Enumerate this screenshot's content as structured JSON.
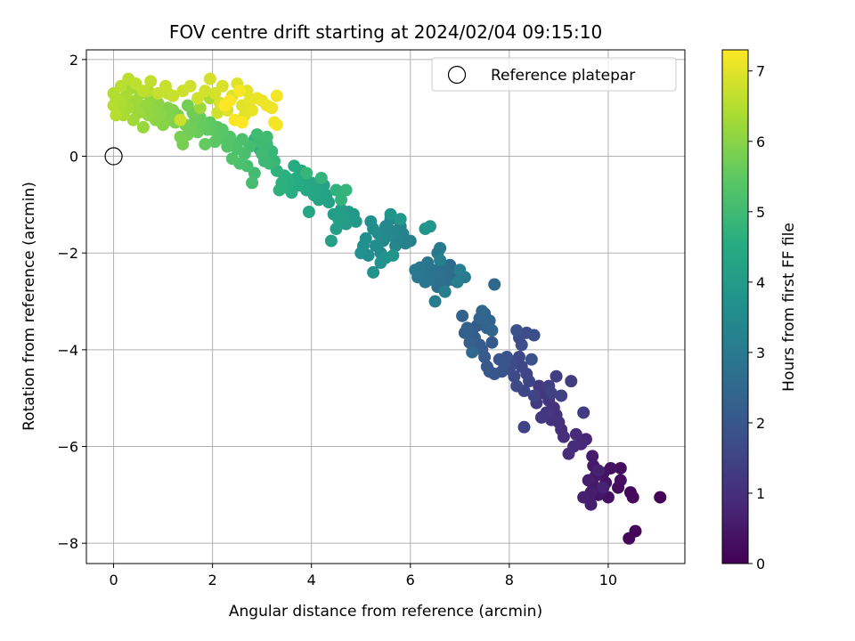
{
  "chart_data": {
    "type": "scatter",
    "title": "FOV centre drift starting at 2024/02/04 09:15:10",
    "xlabel": "Angular distance from reference (arcmin)",
    "ylabel": "Rotation from reference (arcmin)",
    "xlim": [
      -0.55,
      11.55
    ],
    "ylim": [
      -8.42,
      2.2
    ],
    "xticks": [
      0,
      2,
      4,
      6,
      8,
      10
    ],
    "yticks": [
      2,
      0,
      -2,
      -4,
      -6,
      -8
    ],
    "xtick_labels": [
      "0",
      "2",
      "4",
      "6",
      "8",
      "10"
    ],
    "ytick_labels": [
      "2",
      "0",
      "−2",
      "−4",
      "−6",
      "−8"
    ],
    "grid": true,
    "colormap": "viridis",
    "colorbar": {
      "label": "Hours from first FF file",
      "range": [
        0,
        7.3
      ],
      "ticks": [
        0,
        1,
        2,
        3,
        4,
        5,
        6,
        7
      ],
      "tick_labels": [
        "0",
        "1",
        "2",
        "3",
        "4",
        "5",
        "6",
        "7"
      ]
    },
    "reference": {
      "name": "Reference platepar",
      "x": 0,
      "y": 0
    },
    "legend_location": "top-right",
    "points": [
      [
        11.05,
        -7.05,
        0.05
      ],
      [
        10.55,
        -7.75,
        0.1
      ],
      [
        10.42,
        -7.9,
        0.12
      ],
      [
        10.45,
        -6.95,
        0.18
      ],
      [
        10.5,
        -7.05,
        0.2
      ],
      [
        10.2,
        -6.85,
        0.25
      ],
      [
        10.25,
        -6.7,
        0.28
      ],
      [
        10.25,
        -6.45,
        0.3
      ],
      [
        10.05,
        -6.45,
        0.32
      ],
      [
        10.0,
        -7.05,
        0.35
      ],
      [
        9.95,
        -6.75,
        0.38
      ],
      [
        9.9,
        -6.55,
        0.4
      ],
      [
        9.85,
        -6.9,
        0.42
      ],
      [
        9.8,
        -7.0,
        0.45
      ],
      [
        9.75,
        -6.6,
        0.48
      ],
      [
        9.7,
        -6.8,
        0.5
      ],
      [
        9.7,
        -6.4,
        0.52
      ],
      [
        9.68,
        -6.2,
        0.55
      ],
      [
        9.65,
        -6.95,
        0.58
      ],
      [
        9.6,
        -7.05,
        0.6
      ],
      [
        9.6,
        -6.7,
        0.62
      ],
      [
        9.65,
        -7.2,
        0.65
      ],
      [
        9.5,
        -7.05,
        0.68
      ],
      [
        9.8,
        -6.5,
        0.7
      ],
      [
        9.9,
        -6.85,
        0.72
      ],
      [
        9.55,
        -5.85,
        0.8
      ],
      [
        9.45,
        -5.95,
        0.85
      ],
      [
        9.35,
        -5.75,
        0.9
      ],
      [
        9.3,
        -6.0,
        0.92
      ],
      [
        9.2,
        -6.15,
        0.95
      ],
      [
        9.1,
        -5.8,
        1.0
      ],
      [
        9.05,
        -5.65,
        1.02
      ],
      [
        9.0,
        -5.5,
        1.05
      ],
      [
        8.95,
        -5.35,
        1.08
      ],
      [
        8.9,
        -5.2,
        1.1
      ],
      [
        8.85,
        -5.45,
        1.12
      ],
      [
        8.8,
        -5.05,
        1.15
      ],
      [
        8.75,
        -5.3,
        1.18
      ],
      [
        8.7,
        -4.9,
        1.2
      ],
      [
        8.65,
        -5.4,
        1.22
      ],
      [
        8.6,
        -4.75,
        1.25
      ],
      [
        8.55,
        -5.1,
        1.28
      ],
      [
        9.25,
        -4.65,
        1.3
      ],
      [
        9.5,
        -5.3,
        1.32
      ],
      [
        8.95,
        -4.55,
        1.35
      ],
      [
        8.8,
        -4.75,
        1.38
      ],
      [
        9.05,
        -4.95,
        1.4
      ],
      [
        8.85,
        -4.9,
        1.42
      ],
      [
        8.3,
        -5.6,
        1.45
      ],
      [
        8.5,
        -4.95,
        1.48
      ],
      [
        8.4,
        -4.65,
        1.5
      ],
      [
        8.35,
        -4.5,
        1.52
      ],
      [
        8.3,
        -4.85,
        1.55
      ],
      [
        8.25,
        -4.35,
        1.58
      ],
      [
        8.2,
        -4.15,
        1.6
      ],
      [
        8.15,
        -4.75,
        1.62
      ],
      [
        8.1,
        -4.55,
        1.65
      ],
      [
        8.05,
        -4.3,
        1.68
      ],
      [
        8.0,
        -4.4,
        1.7
      ],
      [
        8.35,
        -3.65,
        1.72
      ],
      [
        8.2,
        -3.75,
        1.75
      ],
      [
        8.25,
        -3.9,
        1.78
      ],
      [
        8.5,
        -3.7,
        1.8
      ],
      [
        8.45,
        -4.2,
        1.82
      ],
      [
        8.15,
        -3.6,
        1.85
      ],
      [
        7.95,
        -4.15,
        1.88
      ],
      [
        7.9,
        -4.3,
        1.9
      ],
      [
        7.85,
        -4.45,
        1.92
      ],
      [
        7.8,
        -4.2,
        1.95
      ],
      [
        7.7,
        -4.5,
        1.98
      ],
      [
        7.6,
        -4.45,
        2.0
      ],
      [
        7.55,
        -4.35,
        2.02
      ],
      [
        7.5,
        -4.15,
        2.05
      ],
      [
        7.65,
        -3.85,
        2.08
      ],
      [
        7.45,
        -4.0,
        2.1
      ],
      [
        7.4,
        -3.9,
        2.12
      ],
      [
        7.35,
        -3.5,
        2.15
      ],
      [
        7.3,
        -3.75,
        2.18
      ],
      [
        7.25,
        -3.6,
        2.2
      ],
      [
        7.2,
        -3.85,
        2.22
      ],
      [
        7.15,
        -3.55,
        2.25
      ],
      [
        7.1,
        -3.65,
        2.28
      ],
      [
        7.05,
        -3.3,
        2.3
      ],
      [
        7.5,
        -3.25,
        2.32
      ],
      [
        7.55,
        -3.55,
        2.35
      ],
      [
        7.4,
        -3.35,
        2.38
      ],
      [
        7.6,
        -3.4,
        2.4
      ],
      [
        7.65,
        -3.6,
        2.42
      ],
      [
        7.45,
        -3.2,
        2.45
      ],
      [
        7.7,
        -2.65,
        2.48
      ],
      [
        7.25,
        -4.05,
        2.5
      ],
      [
        6.9,
        -2.45,
        2.55
      ],
      [
        6.85,
        -2.55,
        2.58
      ],
      [
        6.8,
        -2.25,
        2.6
      ],
      [
        6.75,
        -2.4,
        2.62
      ],
      [
        6.7,
        -2.6,
        2.65
      ],
      [
        6.65,
        -2.3,
        2.68
      ],
      [
        6.6,
        -2.5,
        2.7
      ],
      [
        6.55,
        -2.7,
        2.72
      ],
      [
        6.5,
        -2.45,
        2.75
      ],
      [
        6.45,
        -2.35,
        2.78
      ],
      [
        6.4,
        -2.55,
        2.8
      ],
      [
        6.35,
        -2.2,
        2.82
      ],
      [
        6.3,
        -2.6,
        2.85
      ],
      [
        6.25,
        -2.4,
        2.88
      ],
      [
        6.2,
        -2.3,
        2.9
      ],
      [
        6.15,
        -2.5,
        2.92
      ],
      [
        6.1,
        -2.35,
        2.95
      ],
      [
        6.55,
        -2.0,
        2.98
      ],
      [
        6.6,
        -1.9,
        3.0
      ],
      [
        6.5,
        -3.0,
        3.02
      ],
      [
        7.1,
        -2.5,
        3.05
      ],
      [
        7.0,
        -2.35,
        3.08
      ],
      [
        6.95,
        -2.6,
        3.1
      ],
      [
        6.6,
        -2.15,
        3.12
      ],
      [
        6.7,
        -2.8,
        3.15
      ],
      [
        6.0,
        -1.75,
        3.2
      ],
      [
        5.9,
        -1.8,
        3.22
      ],
      [
        5.85,
        -1.6,
        3.25
      ],
      [
        5.8,
        -1.45,
        3.28
      ],
      [
        5.75,
        -1.7,
        3.3
      ],
      [
        5.7,
        -1.85,
        3.32
      ],
      [
        5.65,
        -1.55,
        3.35
      ],
      [
        5.6,
        -1.3,
        3.38
      ],
      [
        5.55,
        -1.65,
        3.4
      ],
      [
        5.5,
        -1.45,
        3.42
      ],
      [
        5.45,
        -1.75,
        3.45
      ],
      [
        5.4,
        -2.0,
        3.48
      ],
      [
        5.35,
        -1.6,
        3.5
      ],
      [
        5.3,
        -1.85,
        3.52
      ],
      [
        5.25,
        -1.5,
        3.55
      ],
      [
        5.2,
        -1.35,
        3.58
      ],
      [
        5.15,
        -2.05,
        3.6
      ],
      [
        5.1,
        -1.7,
        3.62
      ],
      [
        5.05,
        -1.85,
        3.65
      ],
      [
        5.0,
        -2.0,
        3.68
      ],
      [
        5.25,
        -2.4,
        3.7
      ],
      [
        5.4,
        -2.2,
        3.72
      ],
      [
        5.5,
        -2.1,
        3.75
      ],
      [
        5.6,
        -1.2,
        3.78
      ],
      [
        5.65,
        -2.05,
        3.8
      ],
      [
        6.3,
        -1.5,
        3.82
      ],
      [
        6.4,
        -1.45,
        3.85
      ],
      [
        5.8,
        -1.3,
        3.88
      ],
      [
        4.9,
        -1.35,
        3.9
      ],
      [
        4.85,
        -1.2,
        3.92
      ],
      [
        4.8,
        -1.3,
        3.95
      ],
      [
        4.75,
        -1.15,
        3.98
      ],
      [
        4.7,
        -1.4,
        4.0
      ],
      [
        4.65,
        -1.25,
        4.02
      ],
      [
        4.6,
        -1.1,
        4.05
      ],
      [
        4.55,
        -1.3,
        4.08
      ],
      [
        4.5,
        -1.5,
        4.1
      ],
      [
        4.45,
        -1.2,
        4.12
      ],
      [
        4.4,
        -1.75,
        4.15
      ],
      [
        4.35,
        -0.95,
        4.18
      ],
      [
        4.3,
        -0.8,
        4.2
      ],
      [
        4.25,
        -0.6,
        4.22
      ],
      [
        4.2,
        -0.75,
        4.25
      ],
      [
        4.15,
        -0.9,
        4.28
      ],
      [
        4.1,
        -0.65,
        4.3
      ],
      [
        4.05,
        -0.8,
        4.32
      ],
      [
        4.0,
        -0.55,
        4.35
      ],
      [
        3.95,
        -1.15,
        4.38
      ],
      [
        3.9,
        -0.7,
        4.4
      ],
      [
        3.85,
        -0.5,
        4.42
      ],
      [
        3.8,
        -0.3,
        4.45
      ],
      [
        3.75,
        -0.6,
        4.48
      ],
      [
        3.7,
        -0.45,
        4.5
      ],
      [
        3.65,
        -0.2,
        4.52
      ],
      [
        3.6,
        -0.75,
        4.55
      ],
      [
        3.55,
        -0.5,
        4.58
      ],
      [
        3.5,
        -0.65,
        4.6
      ],
      [
        3.45,
        -0.4,
        4.62
      ],
      [
        3.4,
        -0.55,
        4.65
      ],
      [
        3.35,
        -0.7,
        4.68
      ],
      [
        3.3,
        -0.3,
        4.7
      ],
      [
        4.5,
        -0.7,
        4.72
      ],
      [
        4.6,
        -0.9,
        4.75
      ],
      [
        4.7,
        -0.7,
        4.78
      ],
      [
        4.2,
        -0.45,
        4.8
      ],
      [
        3.9,
        -0.35,
        4.82
      ],
      [
        3.25,
        -0.1,
        4.85
      ],
      [
        3.2,
        0.1,
        4.88
      ],
      [
        3.15,
        -0.15,
        4.9
      ],
      [
        3.1,
        0.25,
        4.92
      ],
      [
        3.05,
        -0.1,
        4.95
      ],
      [
        3.0,
        0.05,
        4.98
      ],
      [
        2.95,
        0.3,
        5.0
      ],
      [
        2.9,
        0.45,
        5.02
      ],
      [
        2.85,
        -0.35,
        5.05
      ],
      [
        2.8,
        -0.55,
        5.08
      ],
      [
        2.75,
        0.2,
        5.1
      ],
      [
        2.7,
        -0.2,
        5.12
      ],
      [
        2.65,
        0.05,
        5.15
      ],
      [
        2.6,
        0.35,
        5.18
      ],
      [
        2.55,
        -0.15,
        5.2
      ],
      [
        2.5,
        0.15,
        5.22
      ],
      [
        2.45,
        0.25,
        5.25
      ],
      [
        2.4,
        -0.05,
        5.28
      ],
      [
        2.35,
        0.4,
        5.3
      ],
      [
        2.3,
        0.2,
        5.32
      ],
      [
        2.25,
        0.35,
        5.35
      ],
      [
        2.2,
        0.55,
        5.38
      ],
      [
        2.15,
        0.45,
        5.4
      ],
      [
        2.1,
        0.6,
        5.42
      ],
      [
        2.05,
        0.3,
        5.45
      ],
      [
        2.0,
        0.55,
        5.48
      ],
      [
        1.95,
        0.7,
        5.5
      ],
      [
        1.9,
        0.55,
        5.52
      ],
      [
        1.85,
        0.25,
        5.55
      ],
      [
        1.8,
        0.65,
        5.58
      ],
      [
        1.75,
        0.8,
        5.6
      ],
      [
        1.7,
        0.5,
        5.62
      ],
      [
        1.65,
        0.75,
        5.65
      ],
      [
        1.6,
        0.9,
        5.68
      ],
      [
        1.55,
        0.55,
        5.7
      ],
      [
        1.5,
        0.45,
        5.72
      ],
      [
        1.45,
        0.65,
        5.75
      ],
      [
        1.4,
        0.25,
        5.78
      ],
      [
        1.35,
        0.4,
        5.8
      ],
      [
        1.3,
        0.85,
        5.82
      ],
      [
        1.25,
        0.7,
        5.85
      ],
      [
        1.2,
        0.95,
        5.88
      ],
      [
        1.15,
        0.75,
        5.9
      ],
      [
        1.1,
        1.0,
        5.92
      ],
      [
        1.05,
        0.8,
        5.95
      ],
      [
        1.0,
        0.65,
        5.98
      ],
      [
        0.95,
        0.9,
        6.0
      ],
      [
        0.9,
        1.1,
        6.02
      ],
      [
        0.85,
        0.75,
        6.05
      ],
      [
        0.8,
        0.95,
        6.08
      ],
      [
        0.75,
        1.2,
        6.1
      ],
      [
        0.7,
        0.85,
        6.12
      ],
      [
        0.65,
        1.05,
        6.15
      ],
      [
        0.6,
        0.6,
        6.18
      ],
      [
        0.55,
        1.3,
        6.2
      ],
      [
        0.5,
        0.9,
        6.22
      ],
      [
        0.45,
        1.15,
        6.25
      ],
      [
        0.4,
        0.75,
        6.28
      ],
      [
        0.35,
        1.4,
        6.3
      ],
      [
        0.3,
        1.0,
        6.32
      ],
      [
        0.25,
        1.25,
        6.35
      ],
      [
        0.2,
        0.85,
        6.38
      ],
      [
        0.15,
        1.1,
        6.4
      ],
      [
        0.1,
        0.95,
        6.42
      ],
      [
        0.05,
        1.2,
        6.45
      ],
      [
        0.0,
        1.3,
        6.48
      ],
      [
        0.0,
        1.05,
        6.5
      ],
      [
        0.05,
        0.85,
        6.52
      ],
      [
        0.15,
        1.45,
        6.55
      ],
      [
        0.3,
        1.6,
        6.58
      ],
      [
        0.45,
        1.5,
        6.6
      ],
      [
        0.6,
        1.35,
        6.62
      ],
      [
        0.75,
        1.55,
        6.65
      ],
      [
        0.9,
        1.3,
        6.68
      ],
      [
        1.05,
        1.45,
        6.7
      ],
      [
        1.2,
        1.25,
        6.72
      ],
      [
        1.35,
        0.75,
        6.74
      ],
      [
        1.4,
        1.35,
        6.76
      ],
      [
        1.55,
        1.45,
        6.78
      ],
      [
        1.7,
        1.2,
        6.8
      ],
      [
        1.85,
        1.35,
        6.82
      ],
      [
        1.95,
        1.6,
        6.84
      ],
      [
        2.05,
        1.3,
        6.86
      ],
      [
        2.15,
        1.1,
        6.88
      ],
      [
        2.2,
        1.45,
        6.9
      ],
      [
        2.3,
        0.95,
        6.92
      ],
      [
        2.4,
        1.25,
        6.94
      ],
      [
        2.5,
        1.5,
        6.96
      ],
      [
        2.6,
        1.05,
        6.98
      ],
      [
        2.65,
        0.85,
        7.0
      ],
      [
        2.7,
        1.35,
        7.02
      ],
      [
        2.75,
        1.15,
        7.04
      ],
      [
        2.8,
        0.95,
        7.06
      ],
      [
        2.9,
        1.2,
        7.08
      ],
      [
        3.0,
        1.15,
        7.1
      ],
      [
        3.1,
        1.05,
        7.12
      ],
      [
        3.2,
        1.0,
        7.14
      ],
      [
        3.3,
        1.25,
        7.16
      ],
      [
        3.25,
        0.7,
        7.18
      ],
      [
        3.3,
        0.65,
        7.2
      ],
      [
        2.55,
        1.35,
        7.22
      ],
      [
        2.35,
        1.15,
        7.24
      ],
      [
        2.45,
        0.75,
        7.26
      ],
      [
        2.25,
        1.05,
        7.28
      ],
      [
        2.6,
        0.7,
        7.3
      ],
      [
        1.5,
        1.05,
        5.76
      ],
      [
        1.95,
        1.2,
        6.4
      ],
      [
        2.1,
        0.9,
        6.8
      ],
      [
        1.75,
        1.0,
        6.2
      ],
      [
        0.35,
        1.05,
        5.9
      ],
      [
        0.55,
        1.05,
        6.0
      ],
      [
        0.7,
        1.35,
        6.5
      ],
      [
        1.1,
        1.3,
        6.6
      ],
      [
        2.85,
        0.35,
        4.75
      ],
      [
        2.95,
        0.15,
        4.7
      ],
      [
        3.5,
        -0.45,
        4.35
      ],
      [
        3.65,
        -0.55,
        4.3
      ],
      [
        3.1,
        0.4,
        5.0
      ]
    ]
  }
}
